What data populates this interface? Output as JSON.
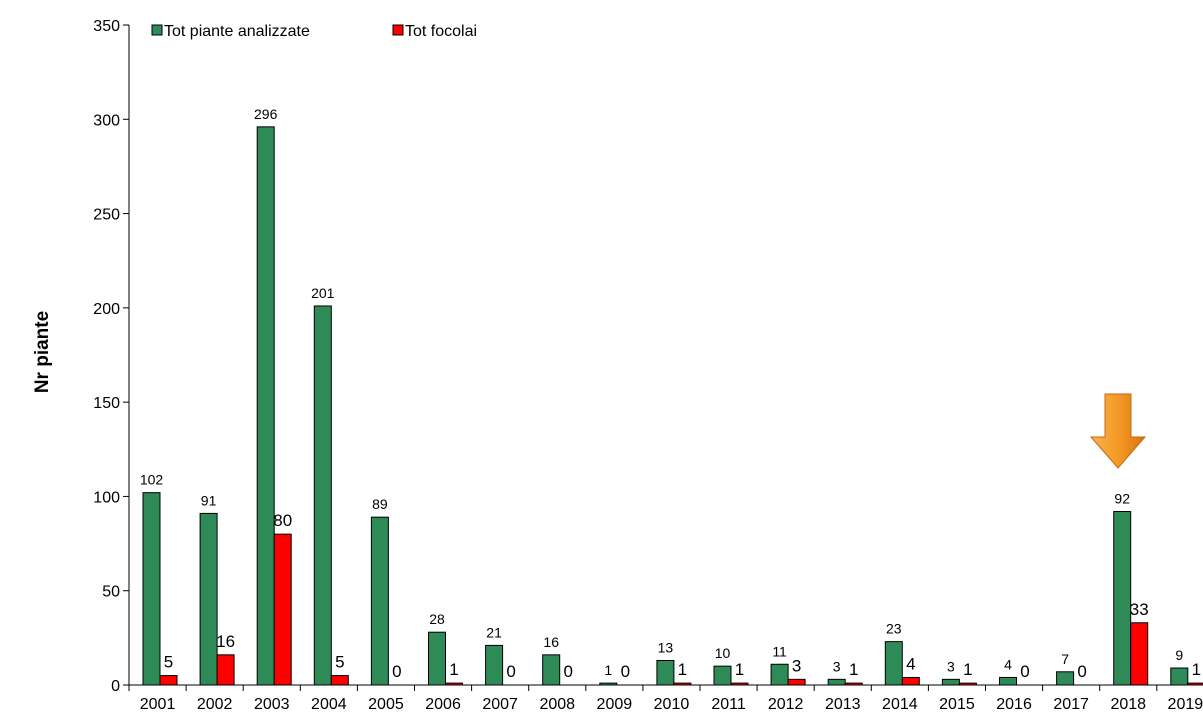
{
  "chart_data": {
    "type": "bar",
    "categories": [
      "2001",
      "2002",
      "2003",
      "2004",
      "2005",
      "2006",
      "2007",
      "2008",
      "2009",
      "2010",
      "2011",
      "2012",
      "2013",
      "2014",
      "2015",
      "2016",
      "2017",
      "2018",
      "2019"
    ],
    "series": [
      {
        "name": "Tot piante analizzate",
        "color": "#2E8B57",
        "values": [
          102,
          91,
          296,
          201,
          89,
          28,
          21,
          16,
          1,
          13,
          10,
          11,
          3,
          23,
          3,
          4,
          7,
          92,
          9
        ]
      },
      {
        "name": "Tot focolai",
        "color": "#FF0000",
        "values": [
          5,
          16,
          80,
          5,
          0,
          1,
          0,
          0,
          0,
          1,
          1,
          3,
          1,
          4,
          1,
          0,
          0,
          33,
          1
        ]
      }
    ],
    "ylabel": "Nr piante",
    "xlabel": "",
    "ylim": [
      0,
      350
    ],
    "yticks": [
      0,
      50,
      100,
      150,
      200,
      250,
      300,
      350
    ],
    "grid": false,
    "legend_position": "top-left",
    "annotations": [
      {
        "type": "arrow-down-icon",
        "target_category": "2018",
        "color": "#F0901E"
      }
    ]
  }
}
